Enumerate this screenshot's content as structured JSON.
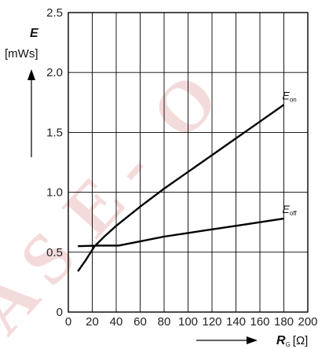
{
  "chart_data": {
    "type": "line",
    "x_axis": {
      "title": "R",
      "title_sub": "G",
      "unit": "[Ω]",
      "range": [
        0,
        200
      ],
      "ticks": [
        0,
        20,
        40,
        60,
        80,
        100,
        120,
        140,
        160,
        180,
        200
      ],
      "tick_labels": [
        "0",
        "20",
        "40",
        "60",
        "80",
        "100",
        "120",
        "140",
        "160",
        "180",
        "200"
      ]
    },
    "y_axis": {
      "title": "E",
      "unit": "[mWs]",
      "range": [
        0,
        2.5
      ],
      "ticks": [
        0,
        0.5,
        1.0,
        1.5,
        2.0,
        2.5
      ],
      "tick_labels": [
        "0",
        "0.5",
        "1.0",
        "1.5",
        "2.0",
        "2.5"
      ]
    },
    "grid": true,
    "series": [
      {
        "name": "E",
        "name_sub": "on",
        "color": "#000000",
        "points": [
          [
            8,
            0.34
          ],
          [
            15,
            0.44
          ],
          [
            22,
            0.55
          ],
          [
            30,
            0.63
          ],
          [
            40,
            0.72
          ],
          [
            60,
            0.88
          ],
          [
            80,
            1.03
          ],
          [
            100,
            1.17
          ],
          [
            120,
            1.31
          ],
          [
            140,
            1.45
          ],
          [
            160,
            1.59
          ],
          [
            180,
            1.73
          ]
        ]
      },
      {
        "name": "E",
        "name_sub": "off",
        "color": "#000000",
        "points": [
          [
            8,
            0.55
          ],
          [
            25,
            0.555
          ],
          [
            42,
            0.555
          ],
          [
            60,
            0.59
          ],
          [
            80,
            0.63
          ],
          [
            100,
            0.66
          ],
          [
            120,
            0.69
          ],
          [
            140,
            0.72
          ],
          [
            160,
            0.75
          ],
          [
            180,
            0.78
          ]
        ]
      }
    ],
    "watermark": "A S E - O"
  }
}
